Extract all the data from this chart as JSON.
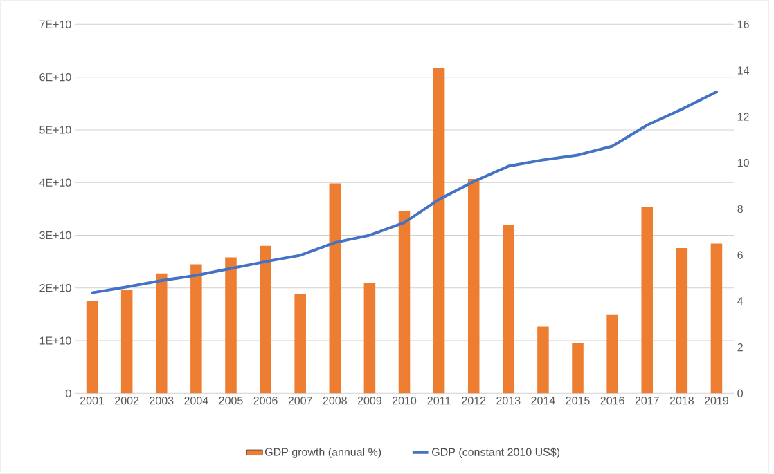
{
  "chart_data": {
    "type": "bar",
    "categories": [
      "2001",
      "2002",
      "2003",
      "2004",
      "2005",
      "2006",
      "2007",
      "2008",
      "2009",
      "2010",
      "2011",
      "2012",
      "2013",
      "2014",
      "2015",
      "2016",
      "2017",
      "2018",
      "2019"
    ],
    "series": [
      {
        "name": "GDP growth (annual %)",
        "axis": "y2",
        "color": "#ed7d31",
        "values": [
          4.0,
          4.5,
          5.2,
          5.6,
          5.9,
          6.4,
          4.3,
          9.1,
          4.8,
          7.9,
          14.1,
          9.3,
          7.3,
          2.9,
          2.2,
          3.4,
          8.1,
          6.3,
          6.5
        ]
      },
      {
        "name": "GDP (constant 2010 US$)",
        "type": "line",
        "axis": "y",
        "color": "#4472c4",
        "marker": "none",
        "values": [
          19100000000,
          20200000000,
          21400000000,
          22400000000,
          23700000000,
          25000000000,
          26200000000,
          28600000000,
          30000000000,
          32400000000,
          36800000000,
          40200000000,
          43100000000,
          44300000000,
          45200000000,
          46900000000,
          50900000000,
          53900000000,
          57200000000
        ]
      }
    ],
    "ylim": [
      0,
      70000000000
    ],
    "yticks": [
      0,
      {
        "value": 10000000000,
        "label": "1E+10"
      },
      {
        "value": 20000000000,
        "label": "2E+10"
      },
      {
        "value": 30000000000,
        "label": "3E+10"
      },
      {
        "value": 40000000000,
        "label": "4E+10"
      },
      {
        "value": 50000000000,
        "label": "5E+10"
      },
      {
        "value": 60000000000,
        "label": "6E+10"
      },
      {
        "value": 70000000000,
        "label": "7E+10"
      }
    ],
    "y2lim": [
      0,
      16
    ],
    "y2ticks": [
      0,
      2,
      4,
      6,
      8,
      10,
      12,
      14,
      16
    ],
    "grid": "y",
    "legend": "bottom"
  }
}
